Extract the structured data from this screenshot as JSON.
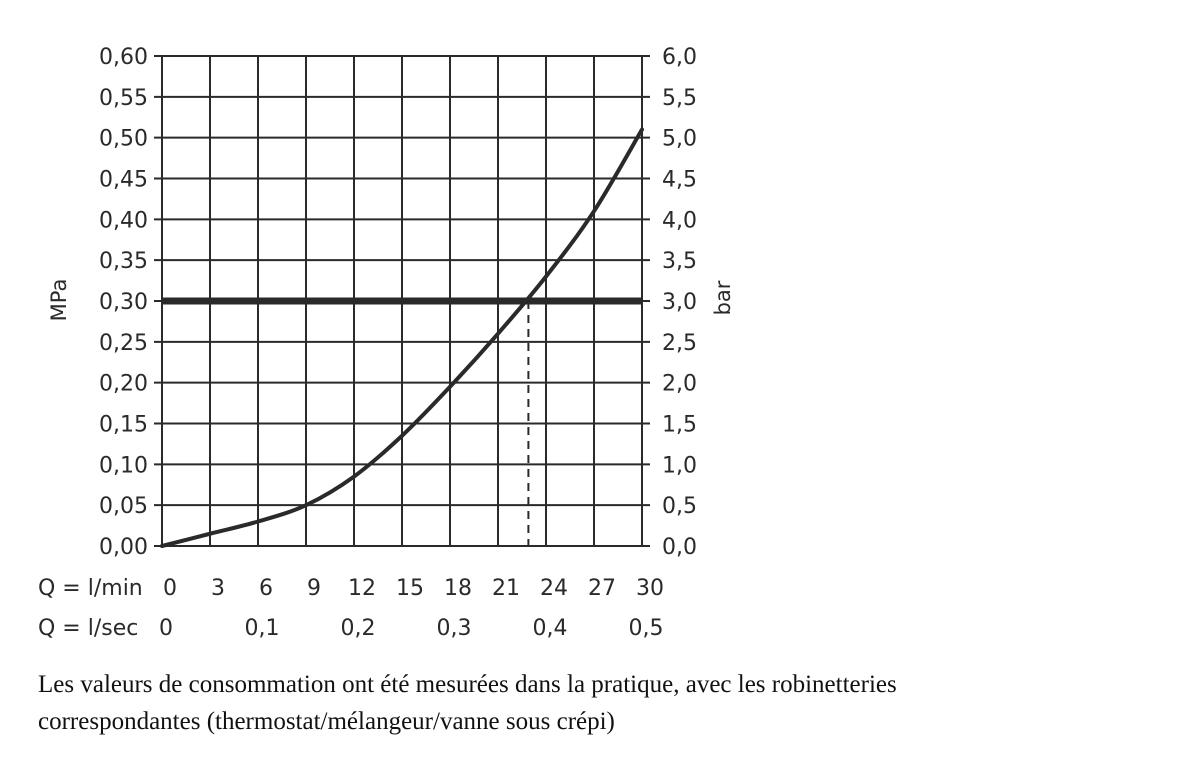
{
  "chart_data": {
    "type": "line",
    "left_axis": {
      "label": "MPa",
      "ticks": [
        "0,00",
        "0,05",
        "0,10",
        "0,15",
        "0,20",
        "0,25",
        "0,30",
        "0,35",
        "0,40",
        "0,45",
        "0,50",
        "0,55",
        "0,60"
      ],
      "range": [
        0,
        0.6
      ]
    },
    "right_axis": {
      "label": "bar",
      "ticks": [
        "0,0",
        "0,5",
        "1,0",
        "1,5",
        "2,0",
        "2,5",
        "3,0",
        "3,5",
        "4,0",
        "4,5",
        "5,0",
        "5,5",
        "6,0"
      ],
      "range": [
        0,
        6.0
      ]
    },
    "x_axis": {
      "row1_label": "Q = l/min",
      "row1_ticks": [
        "0",
        "3",
        "6",
        "9",
        "12",
        "15",
        "18",
        "21",
        "24",
        "27",
        "30"
      ],
      "row2_label": "Q = l/sec",
      "row2_ticks": [
        {
          "value": 0,
          "text": "0"
        },
        {
          "value": 0.1,
          "text": "0,1"
        },
        {
          "value": 0.2,
          "text": "0,2"
        },
        {
          "value": 0.3,
          "text": "0,3"
        },
        {
          "value": 0.4,
          "text": "0,4"
        },
        {
          "value": 0.5,
          "text": "0,5"
        }
      ],
      "range": [
        0,
        30
      ]
    },
    "grid": true,
    "series": [
      {
        "x": [
          0,
          3,
          6,
          9,
          12,
          15,
          18,
          21,
          24,
          27,
          30
        ],
        "y": [
          0.0,
          0.015,
          0.03,
          0.05,
          0.085,
          0.135,
          0.195,
          0.26,
          0.33,
          0.41,
          0.51
        ]
      }
    ],
    "reference_line": {
      "y": 0.3
    },
    "intersection": {
      "x": 22.9,
      "y": 0.3
    }
  },
  "caption": {
    "line1": "Les valeurs de consommation ont été mesurées dans la pratique, avec les robinetteries",
    "line2": "correspondantes (thermostat/mélangeur/vanne sous crépi)"
  }
}
